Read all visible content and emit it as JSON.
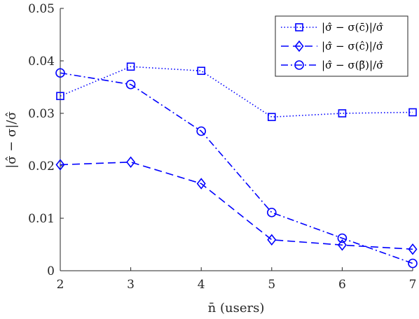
{
  "chart_data": {
    "type": "line",
    "title": "",
    "xlabel": "n̄ (users)",
    "ylabel": "|σ̂ − σ|/σ̂",
    "x": [
      2,
      3,
      4,
      5,
      6,
      7
    ],
    "xlim": [
      2,
      7
    ],
    "ylim": [
      0,
      0.05
    ],
    "xticks": [
      "2",
      "3",
      "4",
      "5",
      "6",
      "7"
    ],
    "yticks": [
      "0",
      "0.01",
      "0.02",
      "0.03",
      "0.04",
      "0.05"
    ],
    "grid": false,
    "legend_position": "top-right",
    "series": [
      {
        "name": "|σ̂ − σ(c̄)|/σ̂",
        "values": [
          0.0333,
          0.0389,
          0.0381,
          0.0293,
          0.03,
          0.0302
        ],
        "marker": "square",
        "line_style": "dotted",
        "color": "#0000ff"
      },
      {
        "name": "|σ̂ − σ(ĉ)|/σ̂",
        "values": [
          0.0202,
          0.0207,
          0.0166,
          0.0059,
          0.0049,
          0.0041
        ],
        "marker": "diamond",
        "line_style": "dashed",
        "color": "#0000ff"
      },
      {
        "name": "|σ̂ − σ(β̃)|/σ̂",
        "values": [
          0.0377,
          0.0355,
          0.0266,
          0.0111,
          0.0062,
          0.0014
        ],
        "marker": "circle",
        "line_style": "dashdot",
        "color": "#0000ff"
      }
    ]
  }
}
